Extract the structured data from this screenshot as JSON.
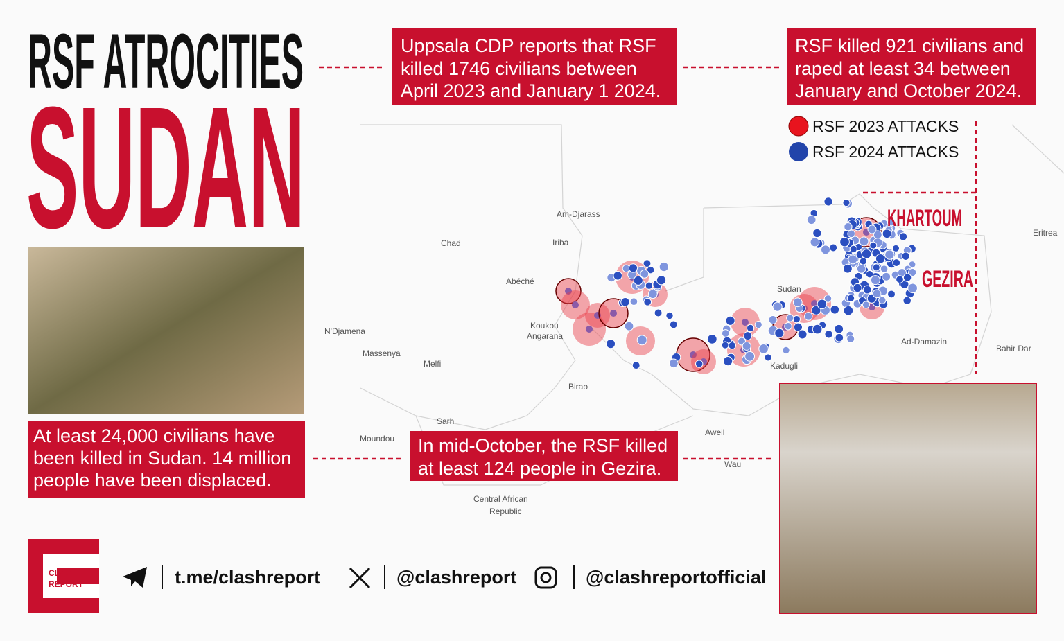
{
  "header": {
    "title_line1": "RSF ATROCITIES",
    "title_line2": "SUDAN"
  },
  "callouts": {
    "uppsala": [
      "Uppsala CDP reports that RSF",
      "killed 1746 civilians between",
      "April 2023 and January 1 2024."
    ],
    "rsf_2024": [
      "RSF killed 921 civilians and",
      "raped at least 34 between",
      "January and October 2024."
    ],
    "civilians": [
      "At least 24,000 civilians have",
      "been killed in Sudan. 14 million",
      "people have been displaced."
    ],
    "gezira": [
      "In mid-October, the RSF killed",
      "at least 124 people in Gezira."
    ]
  },
  "legend": [
    "RSF 2023 ATTACKS",
    "RSF 2024 ATTACKS"
  ],
  "regions": [
    "KHARTOUM",
    "GEZIRA"
  ],
  "map_labels": [
    "Chad",
    "Am-Djarass",
    "Iriba",
    "Abéché",
    "Koukou",
    "Angarana",
    "N'Djamena",
    "Massenya",
    "Melfi",
    "Birao",
    "Sarh",
    "Moundou",
    "Central African",
    "Republic",
    "Sudan",
    "Kadugli",
    "Ad-Damazin",
    "Bahir Dar",
    "Eritrea",
    "Aweil",
    "Wau"
  ],
  "logo": [
    "CLASH",
    "REPORT"
  ],
  "social": [
    "t.me/clashreport",
    "@clashreport",
    "@clashreportofficial"
  ]
}
